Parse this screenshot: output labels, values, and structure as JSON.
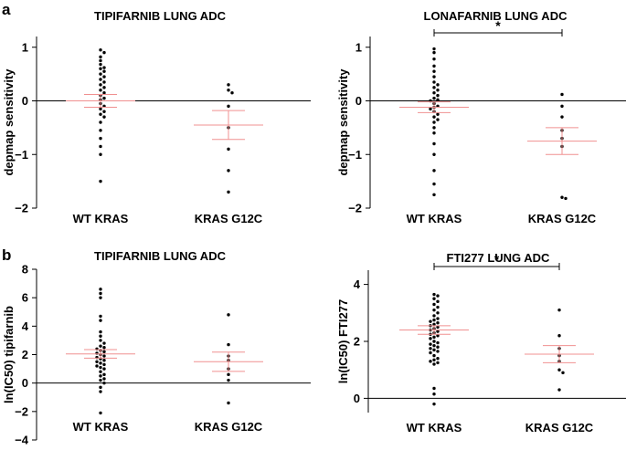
{
  "panels": [
    {
      "letter": "a"
    },
    {
      "letter": "b"
    }
  ],
  "chart_data": [
    {
      "type": "scatter",
      "title": "TIPIFARNIB LUNG ADC",
      "xlabel": "",
      "ylabel": "depmap sensitivity",
      "categories": [
        "WT KRAS",
        "KRAS G12C"
      ],
      "ylim": [
        -2,
        1.2
      ],
      "yticks": [
        -2,
        -1,
        0,
        1
      ],
      "ytick_labels": [
        "−2",
        "−1",
        "0",
        "1"
      ],
      "series": [
        {
          "name": "WT KRAS",
          "values": [
            0.95,
            0.9,
            0.82,
            0.75,
            0.68,
            0.62,
            0.6,
            0.55,
            0.5,
            0.45,
            0.4,
            0.35,
            0.3,
            0.25,
            0.2,
            0.15,
            0.1,
            0.05,
            0.02,
            -0.05,
            -0.1,
            -0.15,
            -0.2,
            -0.25,
            -0.3,
            -0.4,
            -0.55,
            -0.7,
            -0.85,
            -1.0,
            -1.5
          ],
          "mean": 0.0,
          "sem": 0.12
        },
        {
          "name": "KRAS G12C",
          "values": [
            0.3,
            0.2,
            0.15,
            -0.1,
            -0.5,
            -0.9,
            -1.3,
            -1.7
          ],
          "mean": -0.45,
          "sem": 0.27
        }
      ],
      "significance": ""
    },
    {
      "type": "scatter",
      "title": "LONAFARNIB LUNG ADC",
      "xlabel": "",
      "ylabel": "depmap sensitivity",
      "categories": [
        "WT KRAS",
        "KRAS G12C"
      ],
      "ylim": [
        -2,
        1.2
      ],
      "yticks": [
        -2,
        -1,
        0,
        1
      ],
      "ytick_labels": [
        "−2",
        "−1",
        "0",
        "1"
      ],
      "series": [
        {
          "name": "WT KRAS",
          "values": [
            0.97,
            0.9,
            0.78,
            0.65,
            0.55,
            0.45,
            0.35,
            0.3,
            0.25,
            0.2,
            0.15,
            0.1,
            0.05,
            0.02,
            0.0,
            -0.05,
            -0.1,
            -0.12,
            -0.15,
            -0.2,
            -0.25,
            -0.3,
            -0.35,
            -0.4,
            -0.5,
            -0.6,
            -0.8,
            -1.0,
            -1.3,
            -1.55,
            -1.75
          ],
          "mean": -0.12,
          "sem": 0.1
        },
        {
          "name": "KRAS G12C",
          "values": [
            0.12,
            -0.1,
            -0.3,
            -0.55,
            -0.7,
            -0.85,
            -1.8,
            -1.82
          ],
          "mean": -0.75,
          "sem": 0.25
        }
      ],
      "significance": "*"
    },
    {
      "type": "scatter",
      "title": "TIPIFARNIB LUNG ADC",
      "xlabel": "",
      "ylabel": "ln(IC50) tipifarnib",
      "categories": [
        "WT KRAS",
        "KRAS G12C"
      ],
      "ylim": [
        -4,
        8
      ],
      "yticks": [
        -4,
        -2,
        0,
        2,
        4,
        6,
        8
      ],
      "ytick_labels": [
        "−4",
        "−2",
        "0",
        "2",
        "4",
        "6",
        "8"
      ],
      "series": [
        {
          "name": "WT KRAS",
          "values": [
            6.6,
            6.3,
            6.0,
            4.7,
            4.4,
            3.6,
            3.3,
            3.0,
            2.8,
            2.6,
            2.5,
            2.4,
            2.3,
            2.2,
            2.1,
            2.0,
            1.9,
            1.8,
            1.7,
            1.6,
            1.5,
            1.4,
            1.3,
            1.2,
            1.1,
            1.0,
            0.8,
            0.6,
            0.5,
            0.3,
            0.2,
            0.0,
            -0.3,
            -0.6,
            -2.1
          ],
          "mean": 2.05,
          "sem": 0.3
        },
        {
          "name": "KRAS G12C",
          "values": [
            4.8,
            2.7,
            1.9,
            1.6,
            1.0,
            0.6,
            0.2,
            -1.4
          ],
          "mean": 1.5,
          "sem": 0.68
        }
      ],
      "significance": ""
    },
    {
      "type": "scatter",
      "title": "FTI277 LUNG ADC",
      "xlabel": "",
      "ylabel": "ln(IC50) FTI277",
      "categories": [
        "WT KRAS",
        "KRAS G12C"
      ],
      "ylim": [
        -0.5,
        4.5
      ],
      "yticks": [
        0,
        2,
        4
      ],
      "ytick_labels": [
        "0",
        "2",
        "4"
      ],
      "series": [
        {
          "name": "WT KRAS",
          "values": [
            3.65,
            3.6,
            3.5,
            3.4,
            3.3,
            3.2,
            3.1,
            3.0,
            2.9,
            2.8,
            2.75,
            2.7,
            2.65,
            2.6,
            2.55,
            2.5,
            2.45,
            2.4,
            2.35,
            2.3,
            2.25,
            2.2,
            2.15,
            2.1,
            2.0,
            1.95,
            1.9,
            1.85,
            1.8,
            1.75,
            1.7,
            1.65,
            1.6,
            1.5,
            1.4,
            1.35,
            1.3,
            1.25,
            1.2,
            0.35,
            0.15,
            -0.2
          ],
          "mean": 2.4,
          "sem": 0.15
        },
        {
          "name": "KRAS G12C",
          "values": [
            3.1,
            2.2,
            1.75,
            1.5,
            1.3,
            1.0,
            0.9,
            0.3
          ],
          "mean": 1.55,
          "sem": 0.3
        },
        {
          "name": "_",
          "values": [],
          "mean": 0,
          "sem": 0
        }
      ],
      "significance": "*"
    }
  ]
}
